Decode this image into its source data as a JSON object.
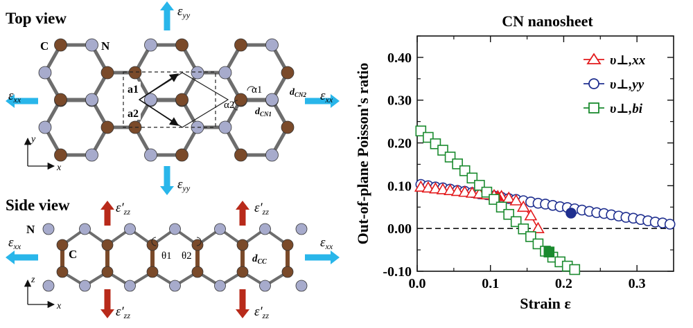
{
  "structure": {
    "top_view_title": "Top view",
    "side_view_title": "Side view",
    "atom_labels": {
      "carbon": "C",
      "nitrogen": "N"
    },
    "strain_labels": {
      "exx": "ε",
      "exx_sub": "xx",
      "eyy": "ε",
      "eyy_sub": "yy",
      "ezz": "ε′",
      "ezz_sub": "zz"
    },
    "lattice_vectors": [
      "a1",
      "a2"
    ],
    "angle_labels": [
      "α1",
      "α2",
      "θ1",
      "θ2"
    ],
    "bond_labels": {
      "dCN1": "d",
      "dCN1_sub": "CN1",
      "dCN2": "d",
      "dCN2_sub": "CN2",
      "dCC": "d",
      "dCC_sub": "CC"
    },
    "axis_labels": {
      "y": "y",
      "x": "x",
      "z": "z"
    },
    "colors": {
      "carbon": "#7a4a2a",
      "nitrogen": "#a7abcc",
      "bond": "#6d6d6d",
      "strain_in_plane": "#29b6ea",
      "strain_out_of_plane": "#b82a1a"
    }
  },
  "chart_data": {
    "type": "scatter",
    "title": "CN nanosheet",
    "xlabel": "Strain ε",
    "ylabel": "Out-of-plane Poisson's ratio",
    "xlim": [
      0.0,
      0.35
    ],
    "ylim": [
      -0.1,
      0.45
    ],
    "x_ticks": [
      "0.0",
      "0.1",
      "0.2",
      "0.3"
    ],
    "y_ticks": [
      "-0.10",
      "0.00",
      "0.10",
      "0.20",
      "0.30",
      "0.40"
    ],
    "zero_line": true,
    "legend_placement": "top-right",
    "series": [
      {
        "name": "υ⊥,xx",
        "marker": "triangle",
        "color": "#e31a1c",
        "x": [
          0.005,
          0.015,
          0.025,
          0.035,
          0.045,
          0.055,
          0.065,
          0.075,
          0.085,
          0.095,
          0.105,
          0.115,
          0.125,
          0.135,
          0.145,
          0.155,
          0.165
        ],
        "y": [
          0.097,
          0.095,
          0.093,
          0.091,
          0.089,
          0.087,
          0.085,
          0.083,
          0.081,
          0.079,
          0.077,
          0.075,
          0.071,
          0.065,
          0.05,
          0.03,
          0.0
        ],
        "highlight": {
          "x": 0.11,
          "y": 0.075
        }
      },
      {
        "name": "υ⊥,yy",
        "marker": "circle",
        "color": "#1f2f8f",
        "x": [
          0.005,
          0.015,
          0.025,
          0.035,
          0.045,
          0.055,
          0.065,
          0.075,
          0.085,
          0.095,
          0.105,
          0.115,
          0.125,
          0.135,
          0.145,
          0.155,
          0.165,
          0.175,
          0.185,
          0.195,
          0.205,
          0.215,
          0.225,
          0.235,
          0.245,
          0.255,
          0.265,
          0.275,
          0.285,
          0.295,
          0.305,
          0.315,
          0.325,
          0.335,
          0.345
        ],
        "y": [
          0.103,
          0.1,
          0.097,
          0.095,
          0.092,
          0.089,
          0.087,
          0.084,
          0.081,
          0.079,
          0.076,
          0.073,
          0.07,
          0.068,
          0.065,
          0.062,
          0.059,
          0.057,
          0.054,
          0.051,
          0.049,
          0.046,
          0.043,
          0.04,
          0.037,
          0.035,
          0.032,
          0.029,
          0.026,
          0.024,
          0.021,
          0.018,
          0.015,
          0.013,
          0.01
        ],
        "highlight": {
          "x": 0.21,
          "y": 0.036
        }
      },
      {
        "name": "υ⊥,bi",
        "marker": "square",
        "color": "#1a8a2e",
        "x": [
          0.005,
          0.015,
          0.025,
          0.035,
          0.045,
          0.055,
          0.065,
          0.075,
          0.085,
          0.095,
          0.105,
          0.115,
          0.125,
          0.135,
          0.145,
          0.155,
          0.165,
          0.175,
          0.185,
          0.195,
          0.205,
          0.215
        ],
        "y": [
          0.228,
          0.213,
          0.198,
          0.183,
          0.167,
          0.151,
          0.135,
          0.118,
          0.101,
          0.085,
          0.068,
          0.05,
          0.033,
          0.016,
          -0.001,
          -0.019,
          -0.036,
          -0.053,
          -0.067,
          -0.078,
          -0.088,
          -0.096
        ],
        "highlight": {
          "x": 0.18,
          "y": -0.055
        }
      }
    ]
  }
}
